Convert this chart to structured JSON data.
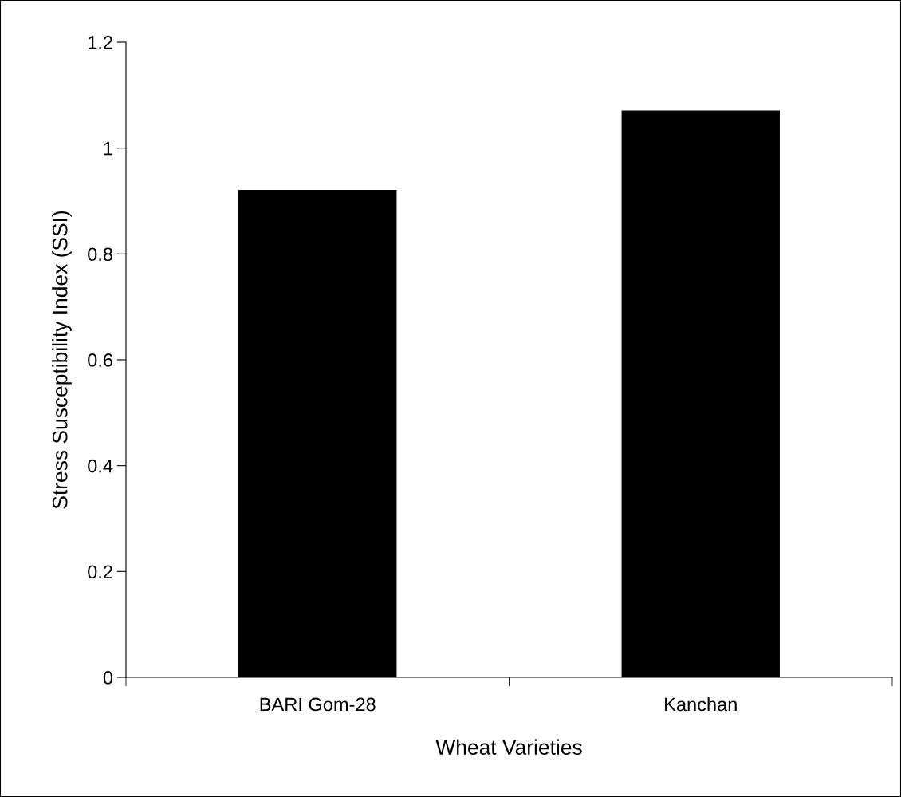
{
  "chart_data": {
    "type": "bar",
    "xlabel": "Wheat Varieties",
    "ylabel": "Stress Susceptibility Index (SSI)",
    "categories": [
      "BARI Gom-28",
      "Kanchan"
    ],
    "values": [
      0.92,
      1.07
    ],
    "color": "#000000",
    "ylim": [
      0,
      1.2
    ],
    "yticks": [
      0,
      0.2,
      0.4,
      0.6,
      0.8,
      1,
      1.2
    ],
    "grid": false,
    "legend": false
  }
}
